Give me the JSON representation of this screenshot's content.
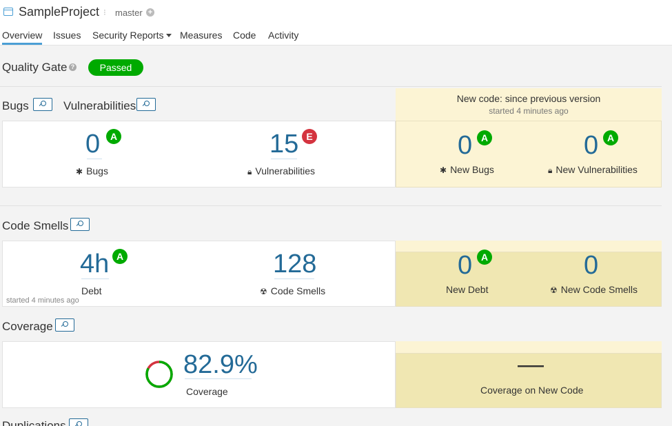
{
  "header": {
    "project_name": "SampleProject",
    "branch": "master"
  },
  "nav": {
    "items": [
      "Overview",
      "Issues",
      "Security Reports",
      "Measures",
      "Code",
      "Activity"
    ],
    "active": "Overview"
  },
  "quality_gate": {
    "label": "Quality Gate",
    "status": "Passed",
    "status_color": "#00aa00"
  },
  "new_code": {
    "title": "New code: since previous version",
    "subtitle": "started 4 minutes ago"
  },
  "sections": {
    "bugs_title": "Bugs",
    "vulnerabilities_title": "Vulnerabilities",
    "code_smells_title": "Code Smells",
    "coverage_title": "Coverage",
    "duplications_title": "Duplications"
  },
  "reliability": {
    "bugs_value": "0",
    "bugs_rating": "A",
    "bugs_label": "Bugs",
    "vuln_value": "15",
    "vuln_rating": "E",
    "vuln_label": "Vulnerabilities",
    "new_bugs_value": "0",
    "new_bugs_rating": "A",
    "new_bugs_label": "New Bugs",
    "new_vuln_value": "0",
    "new_vuln_rating": "A",
    "new_vuln_label": "New Vulnerabilities"
  },
  "maintainability": {
    "debt_value": "4h",
    "debt_rating": "A",
    "debt_label": "Debt",
    "smells_value": "128",
    "smells_label": "Code Smells",
    "started": "started 4 minutes ago",
    "new_debt_value": "0",
    "new_debt_rating": "A",
    "new_debt_label": "New Debt",
    "new_smells_value": "0",
    "new_smells_label": "New Code Smells"
  },
  "coverage": {
    "value": "82.9%",
    "fraction": 0.829,
    "label": "Coverage",
    "new_value": "—",
    "new_label": "Coverage on New Code"
  },
  "colors": {
    "rating_a": "#00aa00",
    "rating_e": "#d4333f",
    "link": "#236a97",
    "new_code_bg": "#fcf4d4"
  }
}
